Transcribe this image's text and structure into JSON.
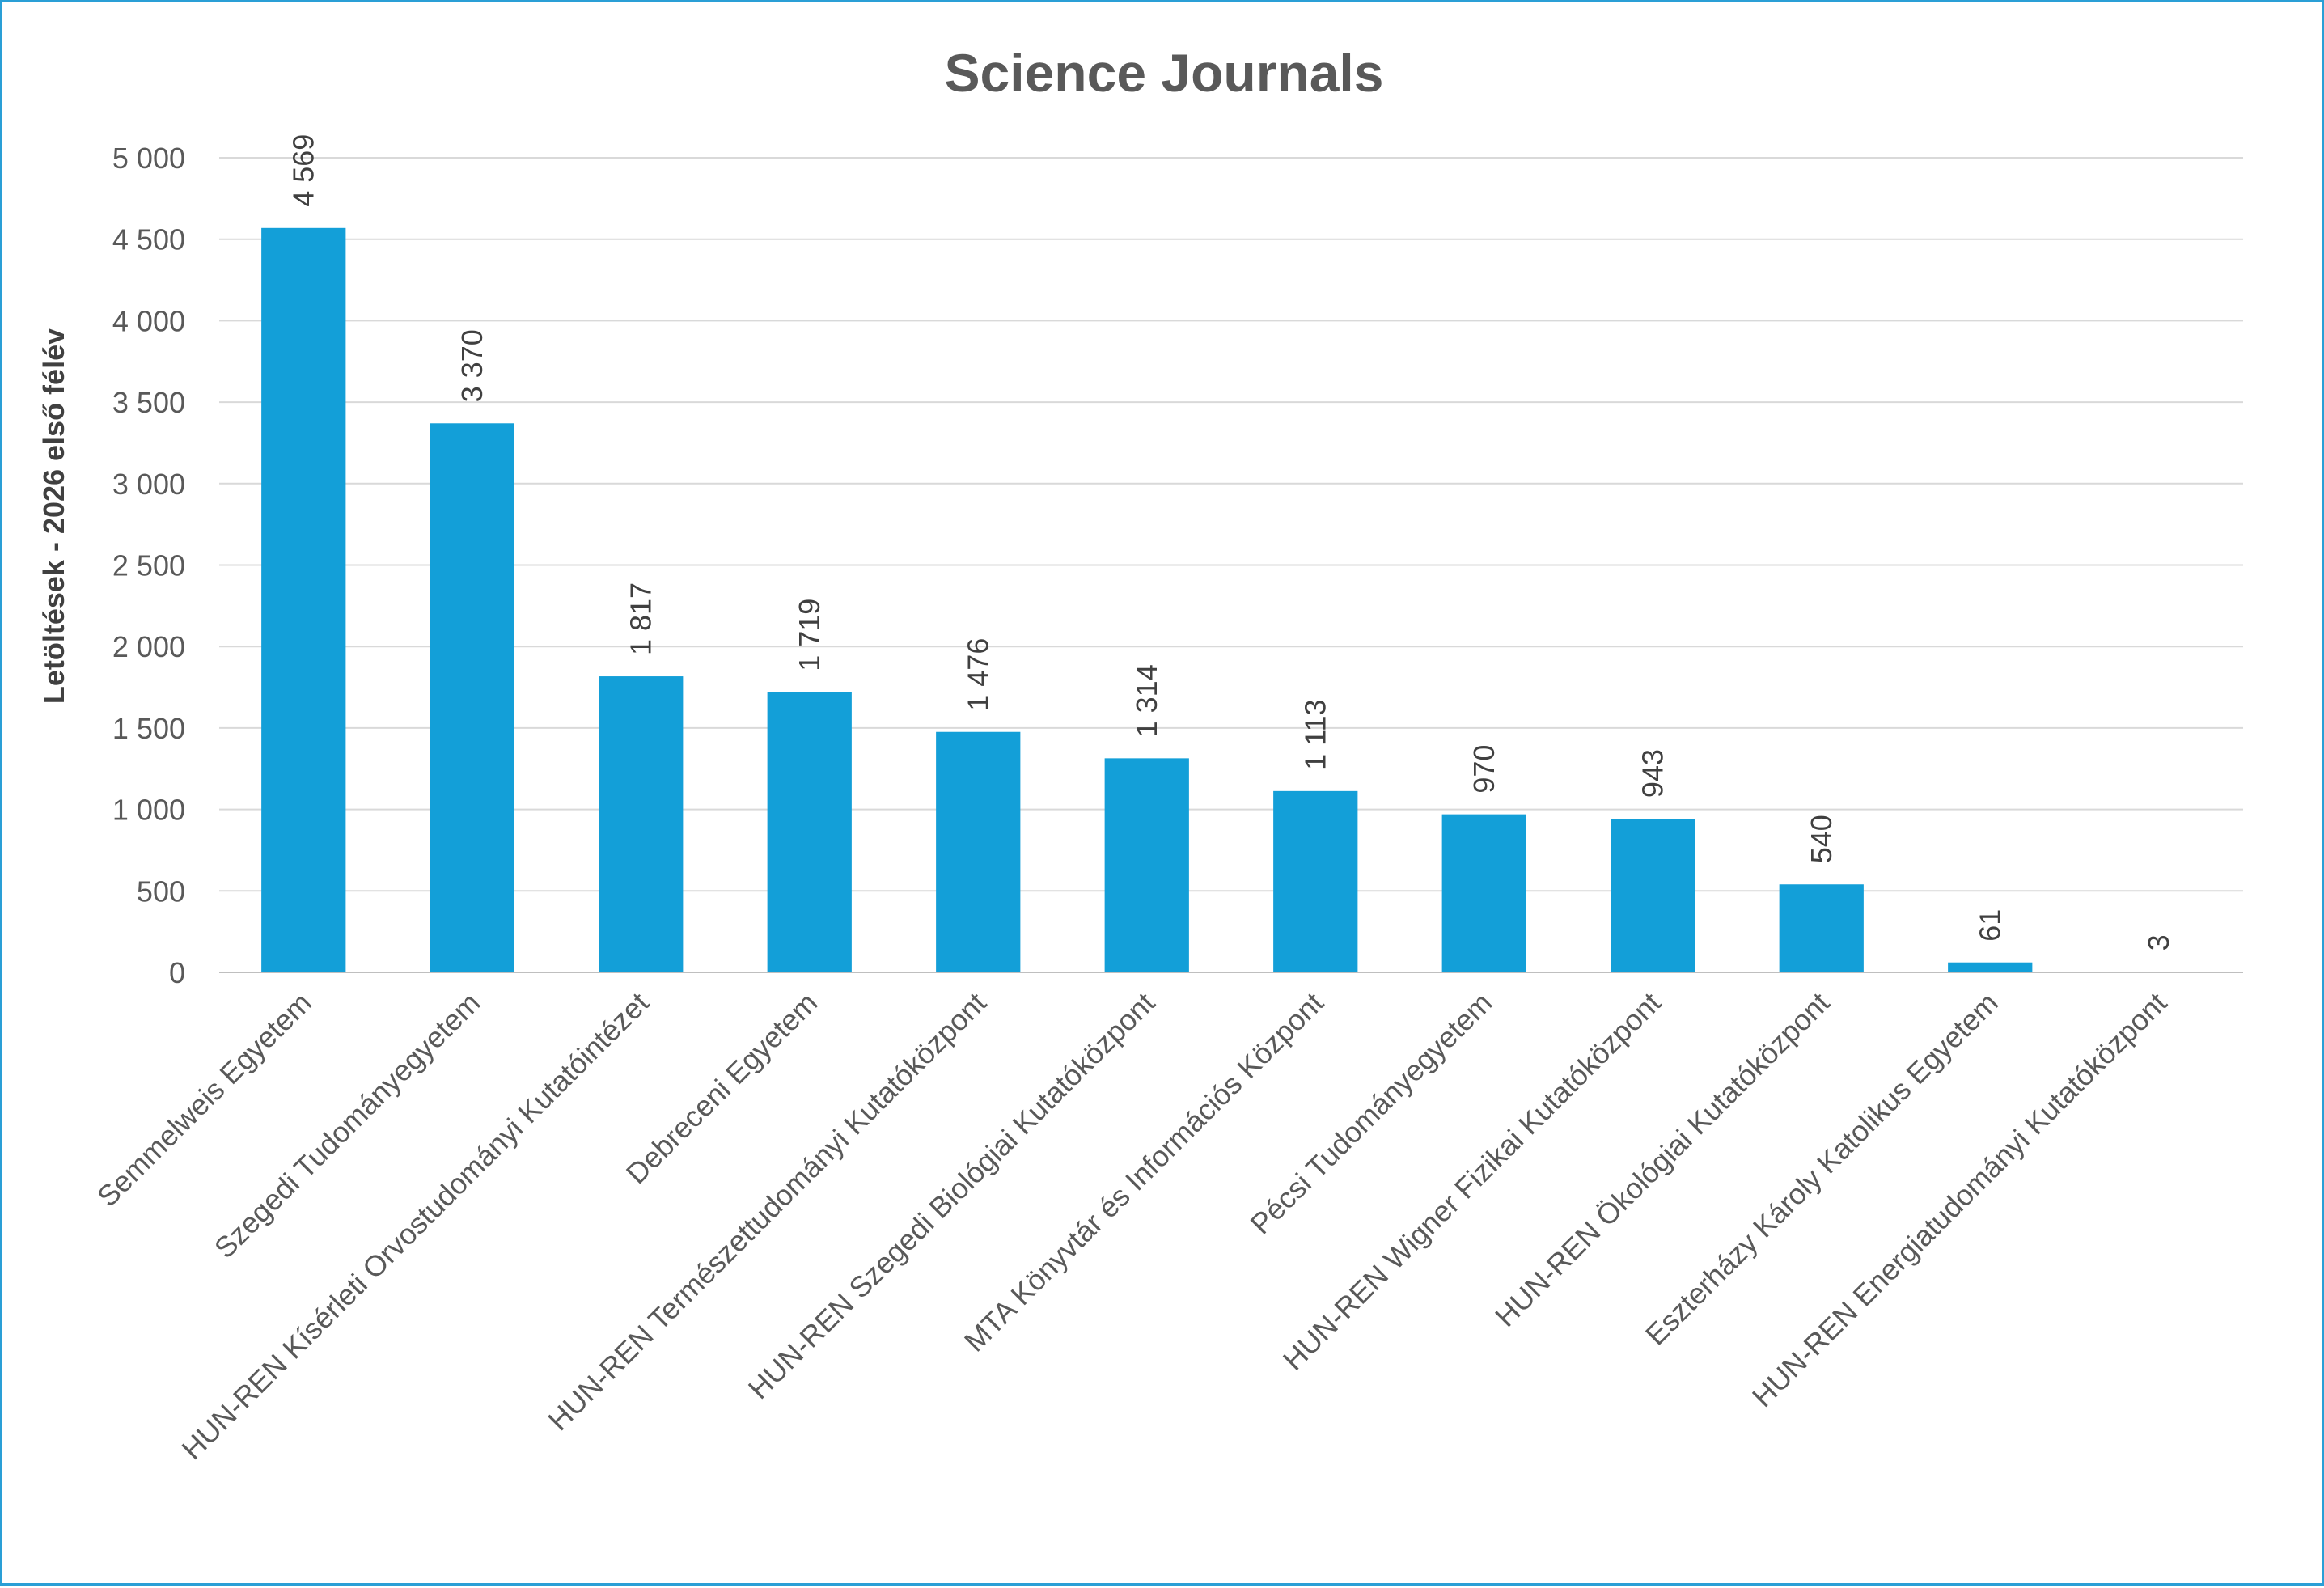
{
  "chart_data": {
    "type": "bar",
    "title": "Science Journals",
    "ylabel": "Letöltések - 2026 első félév",
    "xlabel": "",
    "ylim": [
      0,
      5000
    ],
    "y_ticks": [
      0,
      500,
      1000,
      1500,
      2000,
      2500,
      3000,
      3500,
      4000,
      4500,
      5000
    ],
    "y_tick_labels": [
      "0",
      "500",
      "1 000",
      "1 500",
      "2 000",
      "2 500",
      "3 000",
      "3 500",
      "4 000",
      "4 500",
      "5 000"
    ],
    "grid": true,
    "legend": "none",
    "bar_color": "#139fd8",
    "categories": [
      "Semmelweis Egyetem",
      "Szegedi Tudományegyetem",
      "HUN-REN Kísérleti Orvostudományi Kutatóintézet",
      "Debreceni Egyetem",
      "HUN-REN Természettudományi Kutatóközpont",
      "HUN-REN Szegedi Biológiai Kutatóközpont",
      "MTA Könyvtár és Információs Központ",
      "Pécsi Tudományegyetem",
      "HUN-REN Wigner Fizikai Kutatóközpont",
      "HUN-REN Ökológiai Kutatóközpont",
      "Eszterházy Károly Katolikus Egyetem",
      "HUN-REN Energiatudományi Kutatóközpont"
    ],
    "values": [
      4569,
      3370,
      1817,
      1719,
      1476,
      1314,
      1113,
      970,
      943,
      540,
      61,
      3
    ],
    "value_labels": [
      "4 569",
      "3 370",
      "1 817",
      "1 719",
      "1 476",
      "1 314",
      "1 113",
      "970",
      "943",
      "540",
      "61",
      "3"
    ]
  }
}
